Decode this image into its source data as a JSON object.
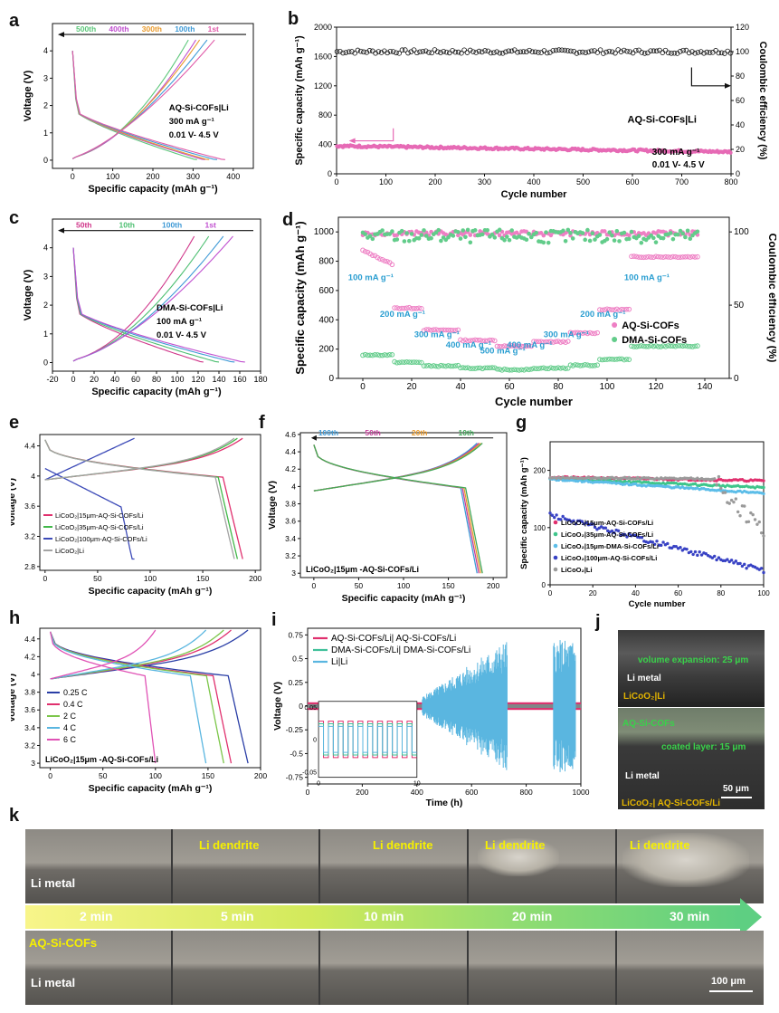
{
  "labels": {
    "a": "a",
    "b": "b",
    "c": "c",
    "d": "d",
    "e": "e",
    "f": "f",
    "g": "g",
    "h": "h",
    "i": "i",
    "j": "j",
    "k": "k"
  },
  "chart_data": [
    {
      "id": "a",
      "type": "line",
      "title": "",
      "xlabel": "Specific capacity (mAh g⁻¹)",
      "ylabel": "Voltage (V)",
      "xlim": [
        -50,
        450
      ],
      "ylim": [
        -0.3,
        5
      ],
      "xticks": [
        0,
        100,
        200,
        300,
        400
      ],
      "yticks": [
        0,
        1,
        2,
        3,
        4
      ],
      "annotation": [
        "AQ-Si-COFs|Li",
        "300 mA g⁻¹",
        "0.01 V- 4.5 V"
      ],
      "series": [
        {
          "name": "500th",
          "color": "#5cc77a",
          "cap": 310
        },
        {
          "name": "400th",
          "color": "#c04fcf",
          "cap": 330
        },
        {
          "name": "300th",
          "color": "#e99a2c",
          "cap": 340
        },
        {
          "name": "100th",
          "color": "#3f9ad6",
          "cap": 360
        },
        {
          "name": "1st",
          "color": "#e05aa8",
          "cap": 380
        }
      ]
    },
    {
      "id": "b",
      "type": "scatter",
      "xlabel": "Cycle number",
      "ylabel": "Specific capacity (mAh g⁻¹)",
      "y2label": "Coulombic efficiency (%)",
      "xlim": [
        0,
        800
      ],
      "ylim": [
        0,
        2000
      ],
      "y2lim": [
        0,
        120
      ],
      "xticks": [
        0,
        100,
        200,
        300,
        400,
        500,
        600,
        700,
        800
      ],
      "yticks": [
        0,
        400,
        800,
        1200,
        1600,
        2000
      ],
      "y2ticks": [
        0,
        20,
        40,
        60,
        80,
        100,
        120
      ],
      "annotation": [
        "AQ-Si-COFs|Li",
        "300 mA g⁻¹",
        "0.01 V- 4.5 V"
      ],
      "series": [
        {
          "name": "Coulombic efficiency",
          "axis": "y2",
          "color": "#111111",
          "value": 100
        },
        {
          "name": "Specific capacity",
          "axis": "y",
          "color": "#e66ab5",
          "start": 380,
          "end": 300
        }
      ]
    },
    {
      "id": "c",
      "type": "line",
      "xlabel": "Specific capacity (mAh g⁻¹)",
      "ylabel": "Voltage (V)",
      "xlim": [
        -20,
        180
      ],
      "ylim": [
        -0.3,
        5
      ],
      "xticks": [
        -20,
        0,
        20,
        40,
        60,
        80,
        100,
        120,
        140,
        160,
        180
      ],
      "yticks": [
        0,
        1,
        2,
        3,
        4
      ],
      "annotation": [
        "DMA-Si-COFs|Li",
        "100 mA g⁻¹",
        "0.01 V- 4.5 V"
      ],
      "series": [
        {
          "name": "50th",
          "color": "#d0368a",
          "cap": 125
        },
        {
          "name": "10th",
          "color": "#4dbf71",
          "cap": 140
        },
        {
          "name": "100th",
          "color": "#3f9ad6",
          "cap": 155
        },
        {
          "name": "1st",
          "color": "#c04fcf",
          "cap": 165
        }
      ]
    },
    {
      "id": "d",
      "type": "scatter",
      "xlabel": "Cycle number",
      "ylabel": "Specific capacity (mAh g⁻¹)",
      "y2label": "Coulombic efficiency (%)",
      "xlim": [
        -10,
        150
      ],
      "ylim": [
        0,
        1100
      ],
      "y2lim": [
        0,
        110
      ],
      "xticks": [
        0,
        20,
        40,
        60,
        80,
        100,
        120,
        140
      ],
      "yticks": [
        0,
        200,
        400,
        600,
        800,
        1000
      ],
      "y2ticks": [
        0,
        50,
        100
      ],
      "rates": [
        "100 mA g⁻¹",
        "200 mA g⁻¹",
        "300 mA g⁻¹",
        "400 mA g⁻¹",
        "500 mA g⁻¹",
        "400 mA g⁻¹",
        "300 mA g⁻¹",
        "200 mA g⁻¹",
        "100 mA g⁻¹"
      ],
      "segments": [
        [
          0,
          12
        ],
        [
          13,
          24
        ],
        [
          25,
          39
        ],
        [
          40,
          54
        ],
        [
          55,
          69
        ],
        [
          70,
          84
        ],
        [
          85,
          96
        ],
        [
          97,
          109
        ],
        [
          110,
          137
        ]
      ],
      "series": [
        {
          "name": "AQ-Si-COFs",
          "color": "#ee7fc4",
          "values": [
            780,
            480,
            330,
            260,
            220,
            250,
            310,
            470,
            830
          ]
        },
        {
          "name": "DMA-Si-COFs",
          "color": "#62cc8a",
          "values": [
            160,
            110,
            85,
            70,
            60,
            70,
            90,
            130,
            220
          ]
        }
      ]
    },
    {
      "id": "e",
      "type": "line",
      "xlabel": "Specific capacity (mAh g⁻¹)",
      "ylabel": "Voltage (V)",
      "xlim": [
        -5,
        205
      ],
      "ylim": [
        2.75,
        4.55
      ],
      "xticks": [
        0,
        50,
        100,
        150,
        200
      ],
      "yticks": [
        2.8,
        3.2,
        3.6,
        4.0,
        4.4
      ],
      "legend": [
        "LiCoO₂|15μm-AQ-Si-COFs/Li",
        "LiCoO₂|35μm-AQ-Si-COFs/Li",
        "LiCoO₂|100μm-AQ-Si-COFs/Li",
        "LiCoO₂|Li"
      ],
      "series": [
        {
          "name": "15um",
          "color": "#e0306e",
          "cap": 188
        },
        {
          "name": "35um",
          "color": "#42b84a",
          "cap": 183
        },
        {
          "name": "100um",
          "color": "#3d4bb8",
          "cap": 85
        },
        {
          "name": "Li",
          "color": "#a4a4a4",
          "cap": 180
        }
      ]
    },
    {
      "id": "f",
      "type": "line",
      "xlabel": "Specific capacity (mAh g⁻¹)",
      "ylabel": "Voltage (V)",
      "xlim": [
        -15,
        215
      ],
      "ylim": [
        2.95,
        4.62
      ],
      "xticks": [
        0,
        50,
        100,
        150,
        200
      ],
      "yticks": [
        3.0,
        3.2,
        3.4,
        3.6,
        3.8,
        4.0,
        4.2,
        4.4,
        4.6
      ],
      "annotation": "LiCoO₂|15μm -AQ-Si-COFs/Li",
      "series": [
        {
          "name": "100th",
          "color": "#3f9ad6",
          "cap": 182
        },
        {
          "name": "50th",
          "color": "#c43f9a",
          "cap": 184
        },
        {
          "name": "20th",
          "color": "#e99a2c",
          "cap": 186
        },
        {
          "name": "10th",
          "color": "#42a85a",
          "cap": 188
        }
      ]
    },
    {
      "id": "g",
      "type": "scatter",
      "xlabel": "Cycle number",
      "ylabel": "Specific capacity (mAh g⁻¹)",
      "xlim": [
        0,
        100
      ],
      "ylim": [
        0,
        250
      ],
      "xticks": [
        0,
        20,
        40,
        60,
        80,
        100
      ],
      "yticks": [
        0,
        100,
        200
      ],
      "legend": [
        "LiCoO₂|15μm-AQ-Si-COFs/Li",
        "LiCoO₂|35μm-AQ-Si-COFs/Li",
        "LiCoO₂|15μm-DMA-Si-COFs/Li",
        "LiCoO₂|100μm-AQ-Si-COFs/Li",
        "LiCoO₂|Li"
      ],
      "series": [
        {
          "name": "15um AQ",
          "color": "#e0306e",
          "start": 188,
          "end": 182
        },
        {
          "name": "35um AQ",
          "color": "#3fc58b",
          "start": 186,
          "end": 170
        },
        {
          "name": "15um DMA",
          "color": "#5cbde8",
          "start": 185,
          "end": 160
        },
        {
          "name": "100um AQ",
          "color": "#3842c4",
          "start": 122,
          "end": 25
        },
        {
          "name": "LiCoO2|Li",
          "color": "#9a9a9a",
          "start": 187,
          "end": 95
        }
      ]
    },
    {
      "id": "h",
      "type": "line",
      "xlabel": "Specific capacity (mAh g⁻¹)",
      "ylabel": "Voltage (V)",
      "xlim": [
        -10,
        200
      ],
      "ylim": [
        2.95,
        4.52
      ],
      "xticks": [
        0,
        50,
        100,
        150,
        200
      ],
      "yticks": [
        3.0,
        3.2,
        3.4,
        3.6,
        3.8,
        4.0,
        4.2,
        4.4
      ],
      "annotation": "LiCoO₂|15μm -AQ-Si-COFs/Li",
      "series": [
        {
          "name": "0.25 C",
          "color": "#2a3ea6",
          "cap": 188
        },
        {
          "name": "0.4 C",
          "color": "#e0306e",
          "cap": 172
        },
        {
          "name": "2 C",
          "color": "#7cc64a",
          "cap": 165
        },
        {
          "name": "4 C",
          "color": "#5ab6e0",
          "cap": 148
        },
        {
          "name": "6 C",
          "color": "#e052b5",
          "cap": 100
        }
      ]
    },
    {
      "id": "i",
      "type": "line",
      "xlabel": "Time (h)",
      "ylabel": "Voltage (V)",
      "xlim": [
        0,
        1000
      ],
      "ylim": [
        -0.82,
        0.82
      ],
      "xticks": [
        0,
        200,
        400,
        600,
        800,
        1000
      ],
      "yticks": [
        -0.75,
        -0.5,
        -0.25,
        0.0,
        0.25,
        0.5,
        0.75
      ],
      "inset": {
        "xlim": [
          0,
          10
        ],
        "ylim": [
          -0.05,
          0.05
        ],
        "xticks": [
          0,
          10
        ],
        "yticks": [
          -0.05,
          0.0,
          0.05
        ]
      },
      "series": [
        {
          "name": "AQ-Si-COFs/Li| AQ-Si-COFs/Li",
          "color": "#e0306e"
        },
        {
          "name": "DMA-Si-COFs/Li| DMA-Si-COFs/Li",
          "color": "#3fc09a"
        },
        {
          "name": "Li|Li",
          "color": "#5ab6e0"
        }
      ]
    }
  ],
  "panel_j": {
    "top_text": "volume expansion: 25 μm",
    "top_metal": "Li metal",
    "top_caption": "LiCoO₂|Li",
    "cof": "AQ-Si-COFs",
    "coated": "coated layer: 15 μm",
    "bottom_metal": "Li metal",
    "bottom_caption": "LiCoO₂| AQ-Si-COFs/Li",
    "scale": "50 μm"
  },
  "panel_k": {
    "li_metal": "Li metal",
    "dendrite": "Li dendrite",
    "times": [
      "2 min",
      "5 min",
      "10 min",
      "20 min",
      "30 min"
    ],
    "cof": "AQ-Si-COFs",
    "li_metal_bottom": "Li metal",
    "scale": "100 μm"
  },
  "colors": {
    "pink": "#e66ab5",
    "green": "#62cc8a",
    "yellow": "#f6f000",
    "gold": "#e3b400"
  }
}
